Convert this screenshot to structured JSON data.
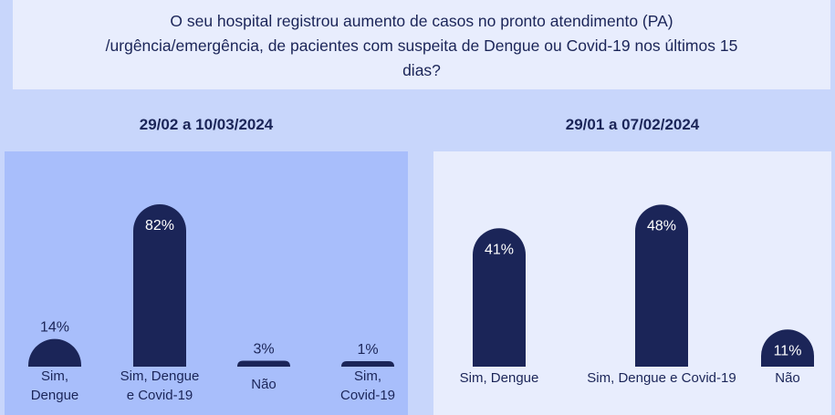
{
  "question": {
    "lines": [
      "O seu hospital registrou aumento de casos no pronto atendimento (PA)",
      "/urgência/emergência, de pacientes com suspeita de Dengue ou Covid-19 nos últimos 15",
      "dias?"
    ]
  },
  "colors": {
    "bar": "#1b2558",
    "left_panel": "#a8befb",
    "right_panel": "#e8edfd",
    "background": "#c8d6fb"
  },
  "chart_data": [
    {
      "type": "bar",
      "title": "29/02 a 10/03/2024",
      "categories": [
        [
          "Sim,",
          "Dengue"
        ],
        [
          "Sim, Dengue",
          "e Covid-19"
        ],
        [
          "Não"
        ],
        [
          "Sim,",
          "Covid-19"
        ]
      ],
      "values": [
        14,
        82,
        3,
        1
      ],
      "value_labels": [
        "14%",
        "82%",
        "3%",
        "1%"
      ],
      "ylim": [
        0,
        100
      ]
    },
    {
      "type": "bar",
      "title": "29/01 a 07/02/2024",
      "categories": [
        [
          "Sim, Dengue"
        ],
        [
          "Sim, Dengue e Covid-19"
        ],
        [
          "Não"
        ]
      ],
      "values": [
        41,
        48,
        11
      ],
      "value_labels": [
        "41%",
        "48%",
        "11%"
      ],
      "ylim": [
        0,
        100
      ]
    }
  ]
}
